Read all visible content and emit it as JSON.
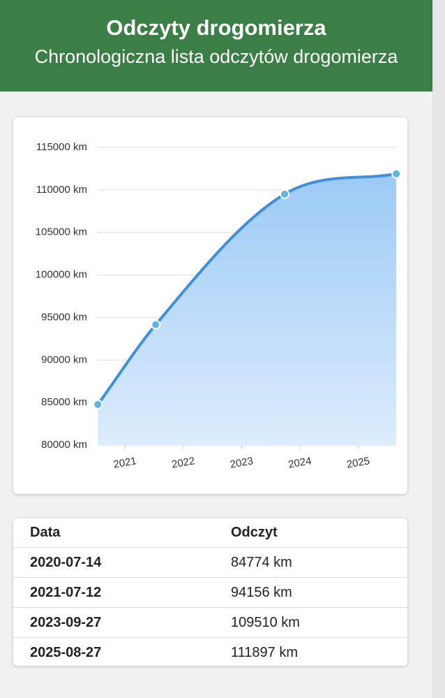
{
  "header": {
    "title": "Odczyty drogomierza",
    "subtitle": "Chronologiczna lista odczytów drogomierza"
  },
  "chart_data": {
    "type": "line",
    "x": [
      "2020-07-14",
      "2021-07-12",
      "2023-09-27",
      "2025-08-27"
    ],
    "values": [
      84774,
      94156,
      109510,
      111897
    ],
    "color": "#3f8ee0",
    "xlim": [
      2020.53,
      2025.65
    ],
    "xticks": [
      2021,
      2022,
      2023,
      2024,
      2025
    ],
    "ylim": [
      80000,
      115000
    ],
    "yticks": [
      {
        "value": 80000,
        "label": "80000 km"
      },
      {
        "value": 85000,
        "label": "85000 km"
      },
      {
        "value": 90000,
        "label": "90000 km"
      },
      {
        "value": 95000,
        "label": "95000 km"
      },
      {
        "value": 100000,
        "label": "100000 km"
      },
      {
        "value": 105000,
        "label": "105000 km"
      },
      {
        "value": 110000,
        "label": "110000 km"
      },
      {
        "value": 115000,
        "label": "115000 km"
      }
    ],
    "grid": true
  },
  "table": {
    "columns": [
      "Data",
      "Odczyt"
    ],
    "rows": [
      [
        "2020-07-14",
        "84774 km"
      ],
      [
        "2021-07-12",
        "94156 km"
      ],
      [
        "2023-09-27",
        "109510 km"
      ],
      [
        "2025-08-27",
        "111897 km"
      ]
    ]
  }
}
